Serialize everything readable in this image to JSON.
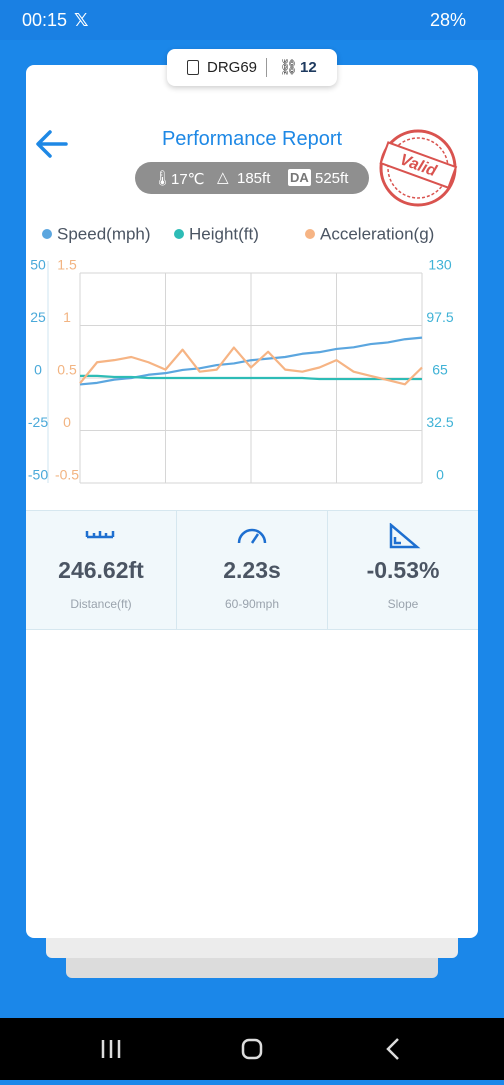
{
  "status_bar": {
    "time": "00:15",
    "battery": "28%"
  },
  "device": {
    "name": "DRG69",
    "count": "12"
  },
  "header": {
    "title": "Performance Report"
  },
  "conditions": {
    "temperature": "17℃",
    "altitude": "185ft",
    "da_label": "DA",
    "density_altitude": "525ft"
  },
  "stamp": "Valid",
  "chart": {
    "type": "line",
    "categories": [
      null,
      null,
      null,
      null,
      null,
      null,
      null,
      null,
      null,
      null,
      null,
      null,
      null,
      null,
      null,
      null,
      null,
      null,
      null,
      null,
      null
    ],
    "series": [
      {
        "name": "Speed(mph)",
        "color": "#5ba6df",
        "axis": "y2",
        "values": [
          61,
          62,
          64,
          65,
          67,
          68,
          70,
          71,
          73,
          74,
          76,
          77,
          78,
          80,
          81,
          83,
          84,
          86,
          87,
          89,
          90
        ]
      },
      {
        "name": "Height(ft)",
        "color": "#2dbcb6",
        "axis": "y",
        "values": [
          1,
          1,
          0.5,
          0.5,
          0,
          0,
          0,
          0,
          0,
          0,
          0,
          0,
          0,
          0,
          -0.5,
          -0.5,
          -0.5,
          -0.5,
          -0.5,
          -0.5,
          -0.5
        ]
      },
      {
        "name": "Acceleration(g)",
        "color": "#f6b484",
        "axis": "y3",
        "values": [
          0.45,
          0.65,
          0.67,
          0.7,
          0.65,
          0.58,
          0.77,
          0.56,
          0.58,
          0.79,
          0.6,
          0.75,
          0.58,
          0.56,
          0.6,
          0.67,
          0.56,
          0.52,
          0.48,
          0.44,
          0.6
        ]
      }
    ],
    "ylim": [
      -50,
      50
    ],
    "yticks": [
      -50,
      -25,
      0,
      25,
      50
    ],
    "ycolor": "#4aa9d9",
    "y3lim": [
      -0.5,
      1.5
    ],
    "y3ticks": [
      -0.5,
      0,
      0.5,
      1,
      1.5
    ],
    "y3color": "#f2b482",
    "y2lim": [
      0,
      130
    ],
    "y2ticks": [
      0,
      32.5,
      65,
      97.5,
      130
    ],
    "y2color": "#3fb2d6",
    "grid": true
  },
  "stats": [
    {
      "value": "246.62ft",
      "label": "Distance(ft)"
    },
    {
      "value": "2.23s",
      "label": "60-90mph"
    },
    {
      "value": "-0.53%",
      "label": "Slope"
    }
  ]
}
